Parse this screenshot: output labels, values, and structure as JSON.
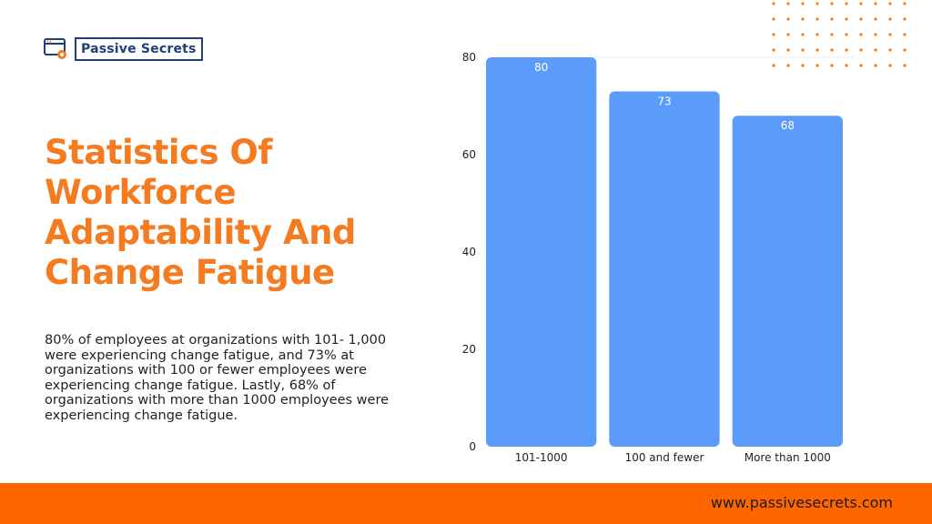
{
  "brand": {
    "name": "Passive Secrets",
    "url": "www.passivesecrets.com",
    "icon": "browser-gear-icon",
    "accent_color": "#f47b20",
    "footer_color": "#ff6600"
  },
  "heading": "Statistics Of Workforce Adaptability And Change Fatigue",
  "description": "80% of employees at organizations with 101- 1,000 were experiencing change fatigue, and 73% at organizations with 100 or fewer employees were experiencing change fatigue. Lastly, 68% of organizations with more than 1000 employees were experiencing change fatigue.",
  "chart_data": {
    "type": "bar",
    "categories": [
      "101-1000",
      "100 and fewer",
      "More than 1000"
    ],
    "values": [
      80,
      73,
      68
    ],
    "title": "",
    "xlabel": "",
    "ylabel": "",
    "ylim": [
      0,
      80
    ],
    "yticks": [
      0,
      20,
      40,
      60,
      80
    ],
    "grid": false,
    "bar_color": "#5b9bfa",
    "data_labels": true
  }
}
